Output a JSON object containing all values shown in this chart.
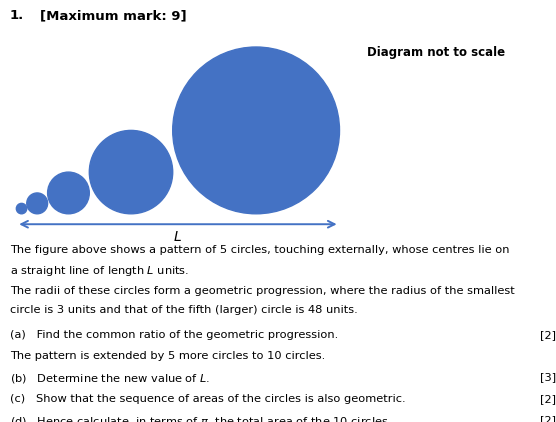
{
  "title_number": "1.",
  "title_mark": "[Maximum mark: 9]",
  "diagram_note": "Diagram not to scale",
  "circle_color": "#4472C4",
  "arrow_color": "#4472C4",
  "radii_display": [
    0.5,
    1.0,
    2.0,
    4.0,
    8.0
  ],
  "background_color": "#ffffff",
  "fig_width": 5.56,
  "fig_height": 4.22,
  "dpi": 100
}
